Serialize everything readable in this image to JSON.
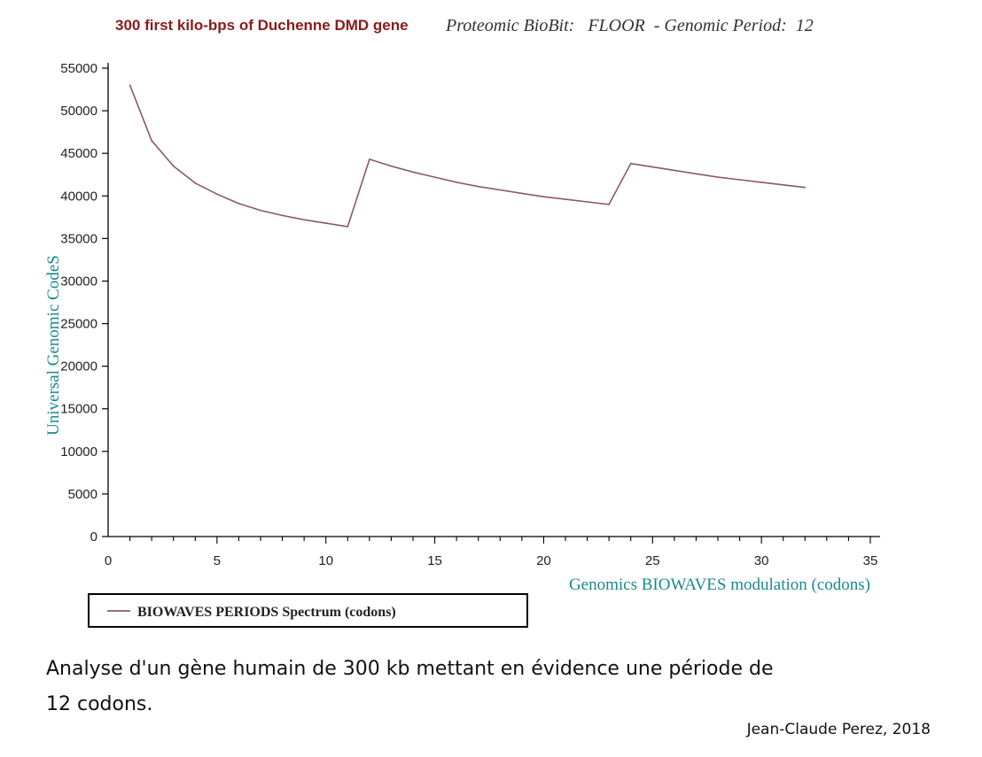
{
  "chart_data": {
    "type": "line",
    "title": "300 first kilo-bps of Duchenne DMD gene",
    "subtitle": "Proteomic BioBit:   FLOOR  - Genomic Period:  12",
    "xlabel": "Genomics BIOWAVES modulation (codons)",
    "ylabel": "Universal Genomic CodeS",
    "xlim": [
      0,
      35
    ],
    "ylim": [
      0,
      55000
    ],
    "x_ticks": [
      0,
      5,
      10,
      15,
      20,
      25,
      30,
      35
    ],
    "y_ticks": [
      0,
      5000,
      10000,
      15000,
      20000,
      25000,
      30000,
      35000,
      40000,
      45000,
      50000,
      55000
    ],
    "grid": false,
    "legend": "bottom-left",
    "series": [
      {
        "name": "BIOWAVES PERIODS Spectrum (codons)",
        "color": "#8b5a5e",
        "x": [
          1,
          2,
          3,
          4,
          5,
          6,
          7,
          8,
          9,
          10,
          11,
          12,
          13,
          14,
          15,
          16,
          17,
          18,
          19,
          20,
          21,
          22,
          23,
          24,
          25,
          26,
          27,
          28,
          29,
          30,
          31,
          32
        ],
        "y": [
          53000,
          46500,
          43500,
          41500,
          40200,
          39100,
          38300,
          37700,
          37200,
          36800,
          36400,
          44300,
          43500,
          42800,
          42200,
          41600,
          41100,
          40700,
          40300,
          39900,
          39600,
          39300,
          39000,
          43800,
          43400,
          43000,
          42600,
          42200,
          41900,
          41600,
          41300,
          41000
        ]
      }
    ]
  },
  "colors": {
    "title": "#8b1a1a",
    "subtitle": "#333333",
    "axis_label": "#1a8a8a",
    "axis": "#000000",
    "tick_label": "#222222"
  },
  "caption": {
    "line1": "Analyse d'un gène humain de 300 kb mettant  en évidence une période de",
    "line2": "12 codons."
  },
  "credit": "Jean-Claude Perez, 2018"
}
